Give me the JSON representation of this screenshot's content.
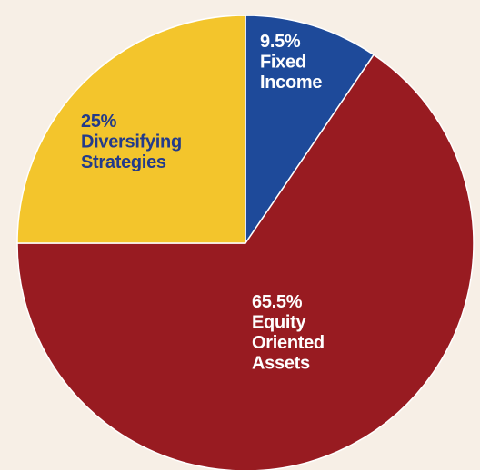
{
  "chart_data": {
    "type": "pie",
    "title": "",
    "start_angle_deg": 0,
    "direction": "clockwise",
    "slices": [
      {
        "name": "Fixed Income",
        "value": 9.5,
        "lines": [
          "9.5%",
          "Fixed",
          "Income"
        ],
        "color": "#1e4a9a",
        "label_color": "#ffffff"
      },
      {
        "name": "Equity Oriented Assets",
        "value": 65.5,
        "lines": [
          "65.5%",
          "Equity",
          "Oriented",
          "Assets"
        ],
        "color": "#981b21",
        "label_color": "#ffffff"
      },
      {
        "name": "Diversifying Strategies",
        "value": 25,
        "lines": [
          "25%",
          "Diversifying",
          "Strategies"
        ],
        "color": "#f3c52c",
        "label_color": "#233b8a"
      }
    ],
    "separator_color": "#ffffff",
    "background": "#f7efe6"
  }
}
